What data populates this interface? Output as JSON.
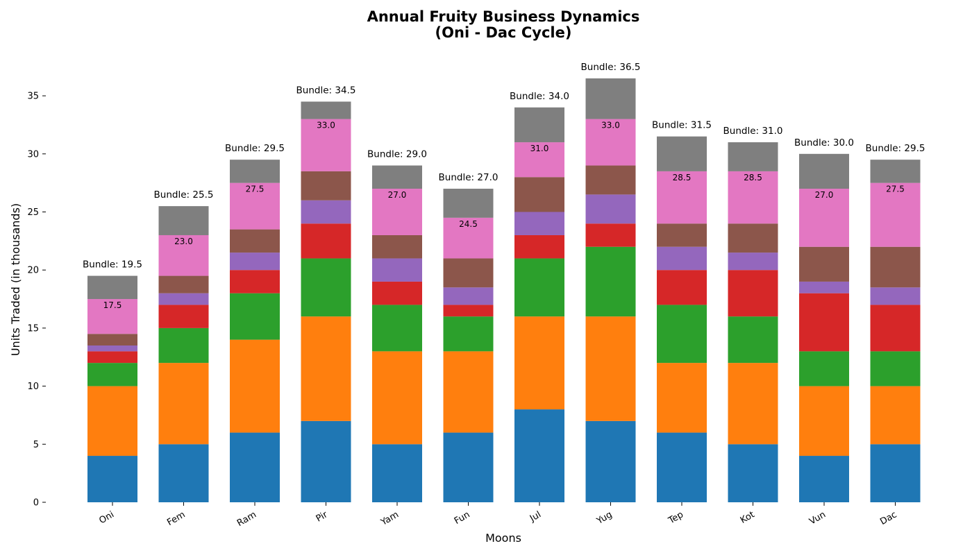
{
  "chart_data": {
    "type": "bar",
    "stacked": true,
    "title_line1": "Annual Fruity Business Dynamics",
    "title_line2": "(Oni - Dac Cycle)",
    "xlabel": "Moons",
    "ylabel": "Units Traded (in thousands)",
    "ylim": [
      0,
      38
    ],
    "yticks": [
      0,
      5,
      10,
      15,
      20,
      25,
      30,
      35
    ],
    "categories": [
      "Oni",
      "Fem",
      "Ram",
      "Pir",
      "Yam",
      "Fun",
      "Jul",
      "Yug",
      "Tep",
      "Kot",
      "Vun",
      "Dac"
    ],
    "series": [
      {
        "color": "#1f77b4",
        "values": [
          4,
          5,
          6,
          7,
          5,
          6,
          8,
          7,
          6,
          5,
          4,
          5
        ]
      },
      {
        "color": "#ff7f0e",
        "values": [
          6,
          7,
          8,
          9,
          8,
          7,
          8,
          9,
          6,
          7,
          6,
          5
        ]
      },
      {
        "color": "#2ca02c",
        "values": [
          2,
          3,
          4,
          5,
          4,
          3,
          5,
          6,
          5,
          4,
          3,
          3
        ]
      },
      {
        "color": "#d62728",
        "values": [
          1,
          2,
          2,
          3,
          2,
          1,
          2,
          2,
          3,
          4,
          5,
          4
        ]
      },
      {
        "color": "#9467bd",
        "values": [
          0.5,
          1,
          1.5,
          2,
          2,
          1.5,
          2,
          2.5,
          2,
          1.5,
          1,
          1.5
        ]
      },
      {
        "color": "#8c564b",
        "values": [
          1,
          1.5,
          2,
          2.5,
          2,
          2.5,
          3,
          2.5,
          2,
          2.5,
          3,
          3.5
        ]
      },
      {
        "color": "#e377c2",
        "values": [
          3,
          3.5,
          4,
          4.5,
          4,
          3.5,
          3,
          4,
          4.5,
          4.5,
          5,
          5.5
        ]
      },
      {
        "color": "#7f7f7f",
        "values": [
          2,
          2.5,
          2,
          1.5,
          2,
          2.5,
          3,
          3.5,
          3,
          2.5,
          3,
          2
        ]
      }
    ],
    "subtotal_labels": [
      "17.5",
      "23.0",
      "27.5",
      "33.0",
      "27.0",
      "24.5",
      "31.0",
      "33.0",
      "28.5",
      "28.5",
      "27.0",
      "27.5"
    ],
    "bundle_labels": [
      "Bundle: 19.5",
      "Bundle: 25.5",
      "Bundle: 29.5",
      "Bundle: 34.5",
      "Bundle: 29.0",
      "Bundle: 27.0",
      "Bundle: 34.0",
      "Bundle: 36.5",
      "Bundle: 31.5",
      "Bundle: 31.0",
      "Bundle: 30.0",
      "Bundle: 29.5"
    ],
    "legend": "none",
    "grid": false
  }
}
